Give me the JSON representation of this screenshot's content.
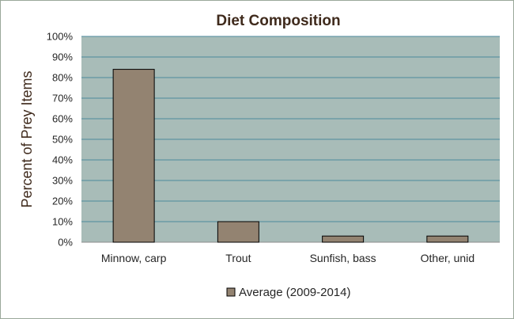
{
  "chart_data": {
    "type": "bar",
    "title": "Diet Composition",
    "xlabel": "",
    "ylabel": "Percent of Prey Items",
    "categories": [
      "Minnow, carp",
      "Trout",
      "Sunfish, bass",
      "Other, unid"
    ],
    "series": [
      {
        "name": "Average (2009-2014)",
        "values": [
          84,
          10,
          3,
          3
        ]
      }
    ],
    "y_ticks": [
      "0%",
      "10%",
      "20%",
      "30%",
      "40%",
      "50%",
      "60%",
      "70%",
      "80%",
      "90%",
      "100%"
    ],
    "ylim": [
      0,
      100
    ],
    "grid": true,
    "legend_position": "bottom",
    "colors": {
      "plot_background": "#a8bcb8",
      "gridline": "#4d8a9c",
      "bar_fill": "#938371",
      "bar_stroke": "#000000",
      "title": "#3f2a1c"
    }
  }
}
